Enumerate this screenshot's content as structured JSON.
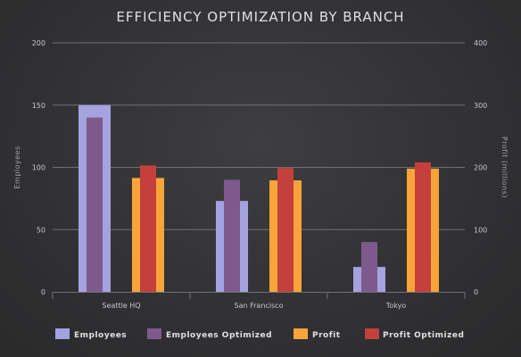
{
  "chart_data": {
    "type": "bar",
    "title": "EFFICIENCY OPTIMIZATION BY BRANCH",
    "categories": [
      "Seattle HQ",
      "San Francisco",
      "Tokyo"
    ],
    "y_left": {
      "label": "Employees",
      "min": 0,
      "max": 200,
      "ticks": [
        0,
        50,
        100,
        150,
        200
      ]
    },
    "y_right": {
      "label": "Profit (millions)",
      "min": 0,
      "max": 400,
      "ticks": [
        0,
        100,
        200,
        300,
        400
      ]
    },
    "series": [
      {
        "name": "Employees",
        "axis": "left",
        "values": [
          150,
          73,
          20
        ],
        "color": "#a4a3e0"
      },
      {
        "name": "Employees Optimized",
        "axis": "left",
        "values": [
          140,
          90,
          40
        ],
        "color": "#7e5a8c"
      },
      {
        "name": "Profit",
        "axis": "right",
        "values": [
          183,
          179,
          198
        ],
        "color": "#f9a43a"
      },
      {
        "name": "Profit Optimized",
        "axis": "right",
        "values": [
          203,
          199,
          208
        ],
        "color": "#c4403b"
      }
    ],
    "grid": true,
    "legend_position": "bottom"
  }
}
